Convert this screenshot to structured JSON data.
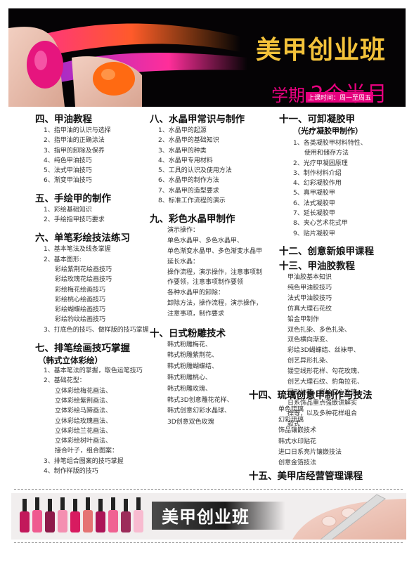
{
  "header": {
    "title": "美甲创业班",
    "duration_label": "学期",
    "duration_value": "2个半月",
    "schedule": "上课时间：周一至周五"
  },
  "sections": {
    "s4": {
      "title": "四、甲油教程",
      "items": [
        "1、指甲油的认识与选择",
        "2、指甲油的正确涂法",
        "3、指甲的卸除及保养",
        "4、纯色甲油技巧",
        "5、法式甲油技巧",
        "6、渐变甲油技巧"
      ]
    },
    "s5": {
      "title": "五、手绘甲的制作",
      "items": [
        "1、彩绘基础知识",
        "2、手绘指甲技巧要求"
      ]
    },
    "s6": {
      "title": "六、单笔彩绘技法练习",
      "items": [
        "1、基本笔法及线条掌握",
        "2、基本图形:",
        "彩绘紫荆花绘画技巧",
        "彩绘玫瑰花绘画技巧",
        "彩绘梅花绘画技巧",
        "彩绘桃心绘画技巧",
        "彩绘蝴蝶绘画技巧",
        "彩绘豹纹绘画技巧",
        "3、打底色的技巧、做样版的技巧掌握"
      ]
    },
    "s7": {
      "title": "七、排笔绘画技巧掌握",
      "subtitle": "（韩式立体彩绘）",
      "items": [
        "1、基本笔法的掌握，取色运笔技巧",
        "2、基础花型：",
        "立体彩绘梅花画法、",
        "立体彩绘紫荆画法、",
        "立体彩绘马蹄画法、",
        "立体彩绘玫瑰画法、",
        "立体彩绘兰花画法、",
        "立体彩绘树叶画法、",
        "接合叶子，组合图案：",
        "3、排笔组合图案的技巧掌握",
        "4、制作样版的技巧"
      ]
    },
    "s8": {
      "title": "八、水晶甲常识与制作",
      "items": [
        "1、水晶甲的起源",
        "2、水晶甲的基础知识",
        "3、水晶甲的种类",
        "4、水晶甲专用材料",
        "5、工具的认识及使用方法",
        "6、水晶甲的制作方法",
        "7、水晶甲的造型要求",
        "8、标准工作流程的演示"
      ]
    },
    "s9": {
      "title": "九、彩色水晶甲制作",
      "lines": [
        "演示操作：",
        "单色水晶甲、多色水晶甲、",
        "单色渐变水晶甲、多色渐变水晶甲",
        "延长水晶：",
        "操作流程，演示操作，注意事项制",
        "作要领，注意事项制作要领",
        "各种水晶甲的卸除：",
        "卸除方法，操作流程，演示操作，",
        "注意事项，制作要求"
      ]
    },
    "s10": {
      "title": "十、日式粉雕技术",
      "lines": [
        "韩式粉雕梅花、",
        "韩式粉雕紫荆花、",
        "韩式粉雕蝴蝶结、",
        "韩式粉雕桃心、",
        "韩式粉雕玫瑰、",
        "韩式3D创意雕花花样、",
        "韩式创意幻彩水晶球、",
        "3D创意双色玫瑰"
      ]
    },
    "s11": {
      "title": "十一、可卸凝胶甲",
      "subtitle": "（光疗凝胶甲制作）",
      "items": [
        "1、各类凝胶甲材料特性、",
        "使用和储存方法",
        "2、光疗甲凝固原理",
        "3、制作材料介绍",
        "4、幻彩凝胶作用",
        "5、真甲凝胶甲",
        "6、法式凝胶甲",
        "7、延长凝胶甲",
        "8、夹心艺术花式甲",
        "9、贴片凝胶甲"
      ]
    },
    "s12": {
      "title": "十二、创意新娘甲课程"
    },
    "s13": {
      "title": "十三、甲油胶教程",
      "lines": [
        "甲油胶基本知识",
        "纯色甲油胶技巧",
        "法式甲油胶技巧",
        "仿真大理石花纹",
        "铅金甲制作",
        "双色扎染、多色扎染、",
        "双色横向渐变、",
        "彩绘3D蝴蝶结、丝袜甲、",
        "创艺异形扎染、",
        "镂空线形花样、勾花玫瑰、",
        "创艺大理石纹、豹角拉花、",
        "回形拉花、彩绘空心玫瑰、",
        "日系饰品重点强嵌讲解实",
        "操等，以及多种花样组合",
        "款式"
      ]
    },
    "s14": {
      "title": "十四、琉璃创意甲制作与技法",
      "lines": [
        "单色琉璃",
        "幻彩琉璃",
        "饰品镶嵌技术",
        "韩式水印贴花",
        "进口日系亮片镶嵌技法",
        "创意金箔技法"
      ]
    },
    "s15": {
      "title": "十五、美甲店经营管理课程"
    }
  },
  "footer": {
    "title": "美甲创业班"
  },
  "colors": {
    "accent_pink": "#e6007e",
    "accent_gold": "#f3c23a",
    "header_bg": "#050305"
  }
}
